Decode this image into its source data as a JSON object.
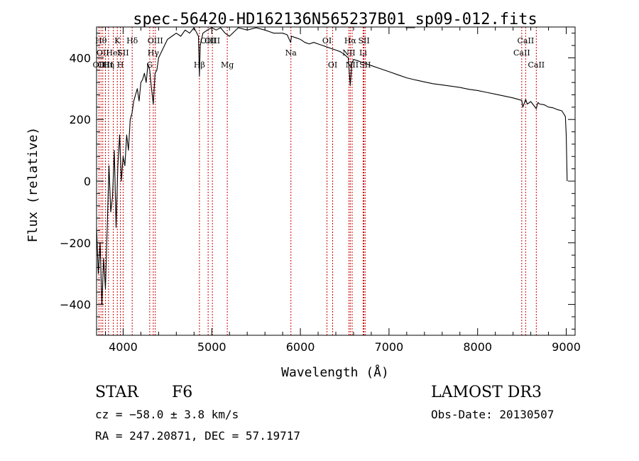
{
  "chart_data": {
    "type": "line",
    "title": "spec-56420-HD162136N565237B01_sp09-012.fits",
    "xlabel": "Wavelength (Å)",
    "ylabel": "Flux (relative)",
    "xlim": [
      3700,
      9100
    ],
    "ylim": [
      -500,
      500
    ],
    "x_ticks": [
      {
        "value": 4000,
        "label": "4000"
      },
      {
        "value": 5000,
        "label": "5000"
      },
      {
        "value": 6000,
        "label": "6000"
      },
      {
        "value": 7000,
        "label": "7000"
      },
      {
        "value": 8000,
        "label": "8000"
      },
      {
        "value": 9000,
        "label": "9000"
      }
    ],
    "y_ticks": [
      {
        "value": -400,
        "label": "−400"
      },
      {
        "value": -200,
        "label": "−200"
      },
      {
        "value": 0,
        "label": "0"
      },
      {
        "value": 200,
        "label": "200"
      },
      {
        "value": 400,
        "label": "400"
      }
    ],
    "spectrum": {
      "name": "flux",
      "color": "#000000",
      "x": [
        3700,
        3720,
        3740,
        3760,
        3780,
        3800,
        3820,
        3840,
        3860,
        3880,
        3900,
        3920,
        3940,
        3960,
        3980,
        4000,
        4020,
        4040,
        4060,
        4080,
        4100,
        4120,
        4140,
        4160,
        4180,
        4200,
        4220,
        4240,
        4260,
        4280,
        4300,
        4320,
        4340,
        4360,
        4380,
        4400,
        4450,
        4500,
        4550,
        4600,
        4650,
        4700,
        4750,
        4800,
        4850,
        4861,
        4870,
        4900,
        4950,
        5000,
        5050,
        5100,
        5150,
        5200,
        5300,
        5400,
        5500,
        5600,
        5700,
        5800,
        5850,
        5890,
        5900,
        5950,
        6000,
        6050,
        6100,
        6150,
        6200,
        6250,
        6300,
        6350,
        6400,
        6450,
        6500,
        6540,
        6563,
        6580,
        6600,
        6650,
        6700,
        6800,
        6900,
        7000,
        7100,
        7200,
        7300,
        7400,
        7500,
        7600,
        7700,
        7800,
        7900,
        8000,
        8100,
        8200,
        8300,
        8400,
        8498,
        8510,
        8542,
        8560,
        8600,
        8662,
        8680,
        8700,
        8750,
        8800,
        8850,
        8900,
        8950,
        8990,
        9000,
        9010
      ],
      "y": [
        -150,
        -300,
        -200,
        -400,
        -250,
        -350,
        -150,
        50,
        -100,
        -50,
        100,
        -150,
        50,
        150,
        0,
        80,
        50,
        150,
        100,
        200,
        220,
        260,
        280,
        300,
        260,
        320,
        330,
        350,
        320,
        380,
        360,
        300,
        250,
        350,
        360,
        400,
        430,
        460,
        470,
        480,
        470,
        490,
        480,
        500,
        470,
        340,
        440,
        480,
        490,
        500,
        490,
        500,
        480,
        470,
        500,
        490,
        500,
        490,
        480,
        480,
        475,
        450,
        470,
        465,
        460,
        450,
        445,
        450,
        445,
        440,
        435,
        430,
        425,
        420,
        410,
        400,
        310,
        380,
        395,
        390,
        385,
        375,
        365,
        355,
        345,
        335,
        328,
        322,
        316,
        312,
        308,
        304,
        298,
        294,
        288,
        282,
        276,
        270,
        262,
        240,
        265,
        250,
        258,
        235,
        255,
        250,
        248,
        240,
        238,
        232,
        228,
        210,
        150,
        0
      ]
    },
    "lines": [
      {
        "wavelength": 3727,
        "label": "OII",
        "row": 2
      },
      {
        "wavelength": 3750,
        "label": "Hθ",
        "row": 0
      },
      {
        "wavelength": 3770,
        "label": "OII",
        "row": 1
      },
      {
        "wavelength": 3800,
        "label": "OIII",
        "row": 2
      },
      {
        "wavelength": 3835,
        "label": "Hη",
        "row": 2
      },
      {
        "wavelength": 3889,
        "label": "HeI",
        "row": 1
      },
      {
        "wavelength": 3934,
        "label": "K",
        "row": 0
      },
      {
        "wavelength": 3969,
        "label": "H",
        "row": 2
      },
      {
        "wavelength": 4000,
        "label": "SII",
        "row": 1
      },
      {
        "wavelength": 4102,
        "label": "Hδ",
        "row": 0
      },
      {
        "wavelength": 4300,
        "label": "G",
        "row": 2
      },
      {
        "wavelength": 4340,
        "label": "Hγ",
        "row": 1
      },
      {
        "wavelength": 4363,
        "label": "OIII",
        "row": 0
      },
      {
        "wavelength": 4861,
        "label": "Hβ",
        "row": 2
      },
      {
        "wavelength": 4959,
        "label": "OIII",
        "row": 0
      },
      {
        "wavelength": 5007,
        "label": "OIII",
        "row": 0
      },
      {
        "wavelength": 5175,
        "label": "Mg",
        "row": 2
      },
      {
        "wavelength": 5893,
        "label": "Na",
        "row": 1
      },
      {
        "wavelength": 6300,
        "label": "OI",
        "row": 0
      },
      {
        "wavelength": 6364,
        "label": "OI",
        "row": 2
      },
      {
        "wavelength": 6548,
        "label": "NII",
        "row": 1
      },
      {
        "wavelength": 6563,
        "label": "Hα",
        "row": 0
      },
      {
        "wavelength": 6584,
        "label": "NII",
        "row": 2
      },
      {
        "wavelength": 6708,
        "label": "Li",
        "row": 1
      },
      {
        "wavelength": 6717,
        "label": "SII",
        "row": 0
      },
      {
        "wavelength": 6731,
        "label": "SII",
        "row": 2
      },
      {
        "wavelength": 8498,
        "label": "CaII",
        "row": 1
      },
      {
        "wavelength": 8542,
        "label": "CaII",
        "row": 0
      },
      {
        "wavelength": 8662,
        "label": "CaII",
        "row": 2
      }
    ],
    "line_color": "#cc0000",
    "grid": false,
    "legend": "none"
  },
  "info": {
    "object_class": "STAR",
    "subclass": "F6",
    "survey": "LAMOST DR3",
    "redshift": "cz = −58.0 ± 3.8 km/s",
    "obs_date": "Obs-Date: 20130507",
    "coords": "RA = 247.20871, DEC =  57.19717"
  }
}
